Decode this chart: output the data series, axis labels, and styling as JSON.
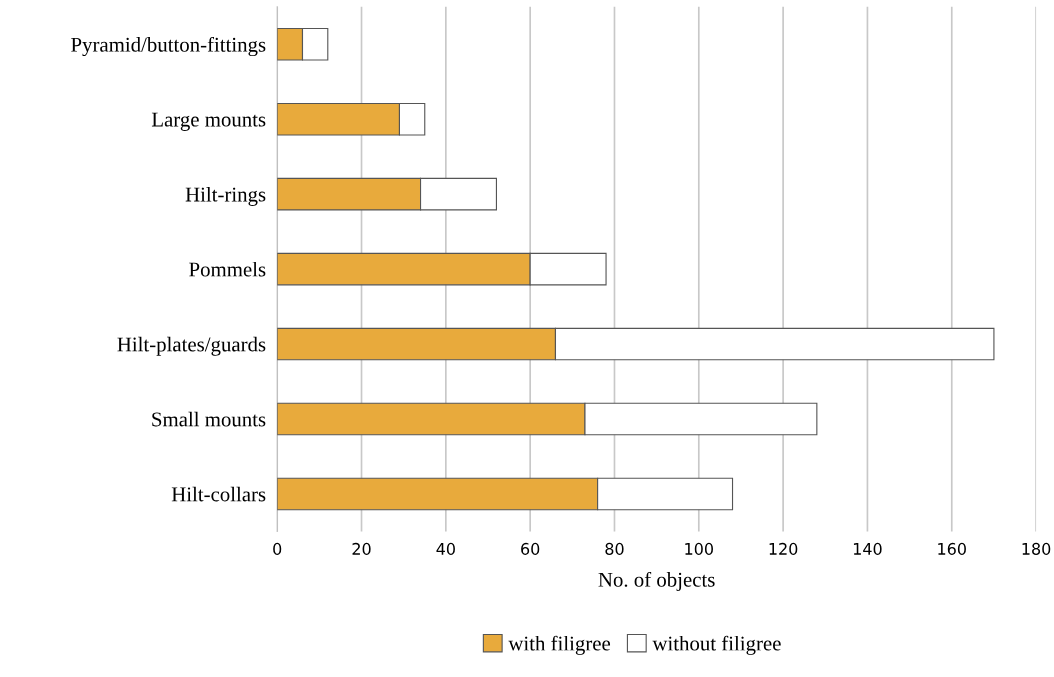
{
  "chart_data": {
    "type": "bar",
    "orientation": "horizontal",
    "stacked": true,
    "categories": [
      "Pyramid/button-fittings",
      "Large mounts",
      "Hilt-rings",
      "Pommels",
      "Hilt-plates/guards",
      "Small mounts",
      "Hilt-collars"
    ],
    "series": [
      {
        "name": "with filigree",
        "color": "#e8aa3c",
        "values": [
          6,
          29,
          34,
          60,
          66,
          73,
          76
        ]
      },
      {
        "name": "without filigree",
        "color": "#ffffff",
        "values": [
          6,
          6,
          18,
          18,
          104,
          55,
          32
        ]
      }
    ],
    "xlabel": "No. of objects",
    "xlim": [
      0,
      180
    ],
    "xticks": [
      0,
      20,
      40,
      60,
      80,
      100,
      120,
      140,
      160,
      180
    ],
    "grid": "x",
    "legend": "bottom"
  }
}
